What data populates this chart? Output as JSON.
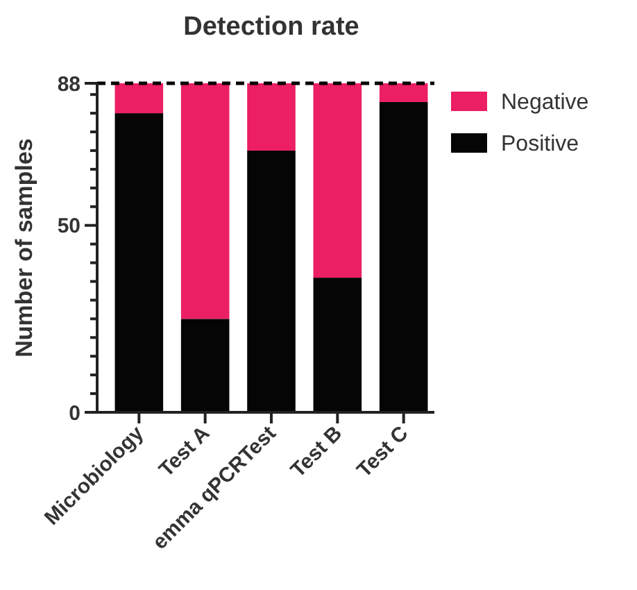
{
  "chart_data": {
    "type": "bar",
    "title": "Detection rate",
    "ylabel": "Number of samples",
    "stacked": true,
    "categories": [
      "Microbiology",
      "Test A",
      "emma qPCRTest",
      "Test B",
      "Test C"
    ],
    "series": [
      {
        "name": "Positive",
        "color": "#050505",
        "values": [
          80,
          25,
          70,
          36,
          83
        ]
      },
      {
        "name": "Negative",
        "color": "#ec1e64",
        "values": [
          8,
          63,
          18,
          52,
          5
        ]
      }
    ],
    "ylim": [
      0,
      88
    ],
    "yticks": [
      0,
      {
        "value": 5,
        "label": null
      },
      {
        "value": 10,
        "label": null
      },
      {
        "value": 15,
        "label": null
      },
      {
        "value": 20,
        "label": null
      },
      {
        "value": 25,
        "label": null
      },
      {
        "value": 30,
        "label": null
      },
      {
        "value": 35,
        "label": null
      },
      {
        "value": 40,
        "label": null
      },
      {
        "value": 45,
        "label": null
      },
      50,
      {
        "value": 55,
        "label": null
      },
      {
        "value": 60,
        "label": null
      },
      {
        "value": 65,
        "label": null
      },
      {
        "value": 70,
        "label": null
      },
      {
        "value": 75,
        "label": null
      },
      {
        "value": 80,
        "label": null
      },
      {
        "value": 85,
        "label": null
      },
      88
    ],
    "ref_lines": [
      {
        "axis": "y",
        "value": 88,
        "line_style": "dashed",
        "color": "#000000"
      }
    ],
    "legend": "right",
    "grid": false
  }
}
